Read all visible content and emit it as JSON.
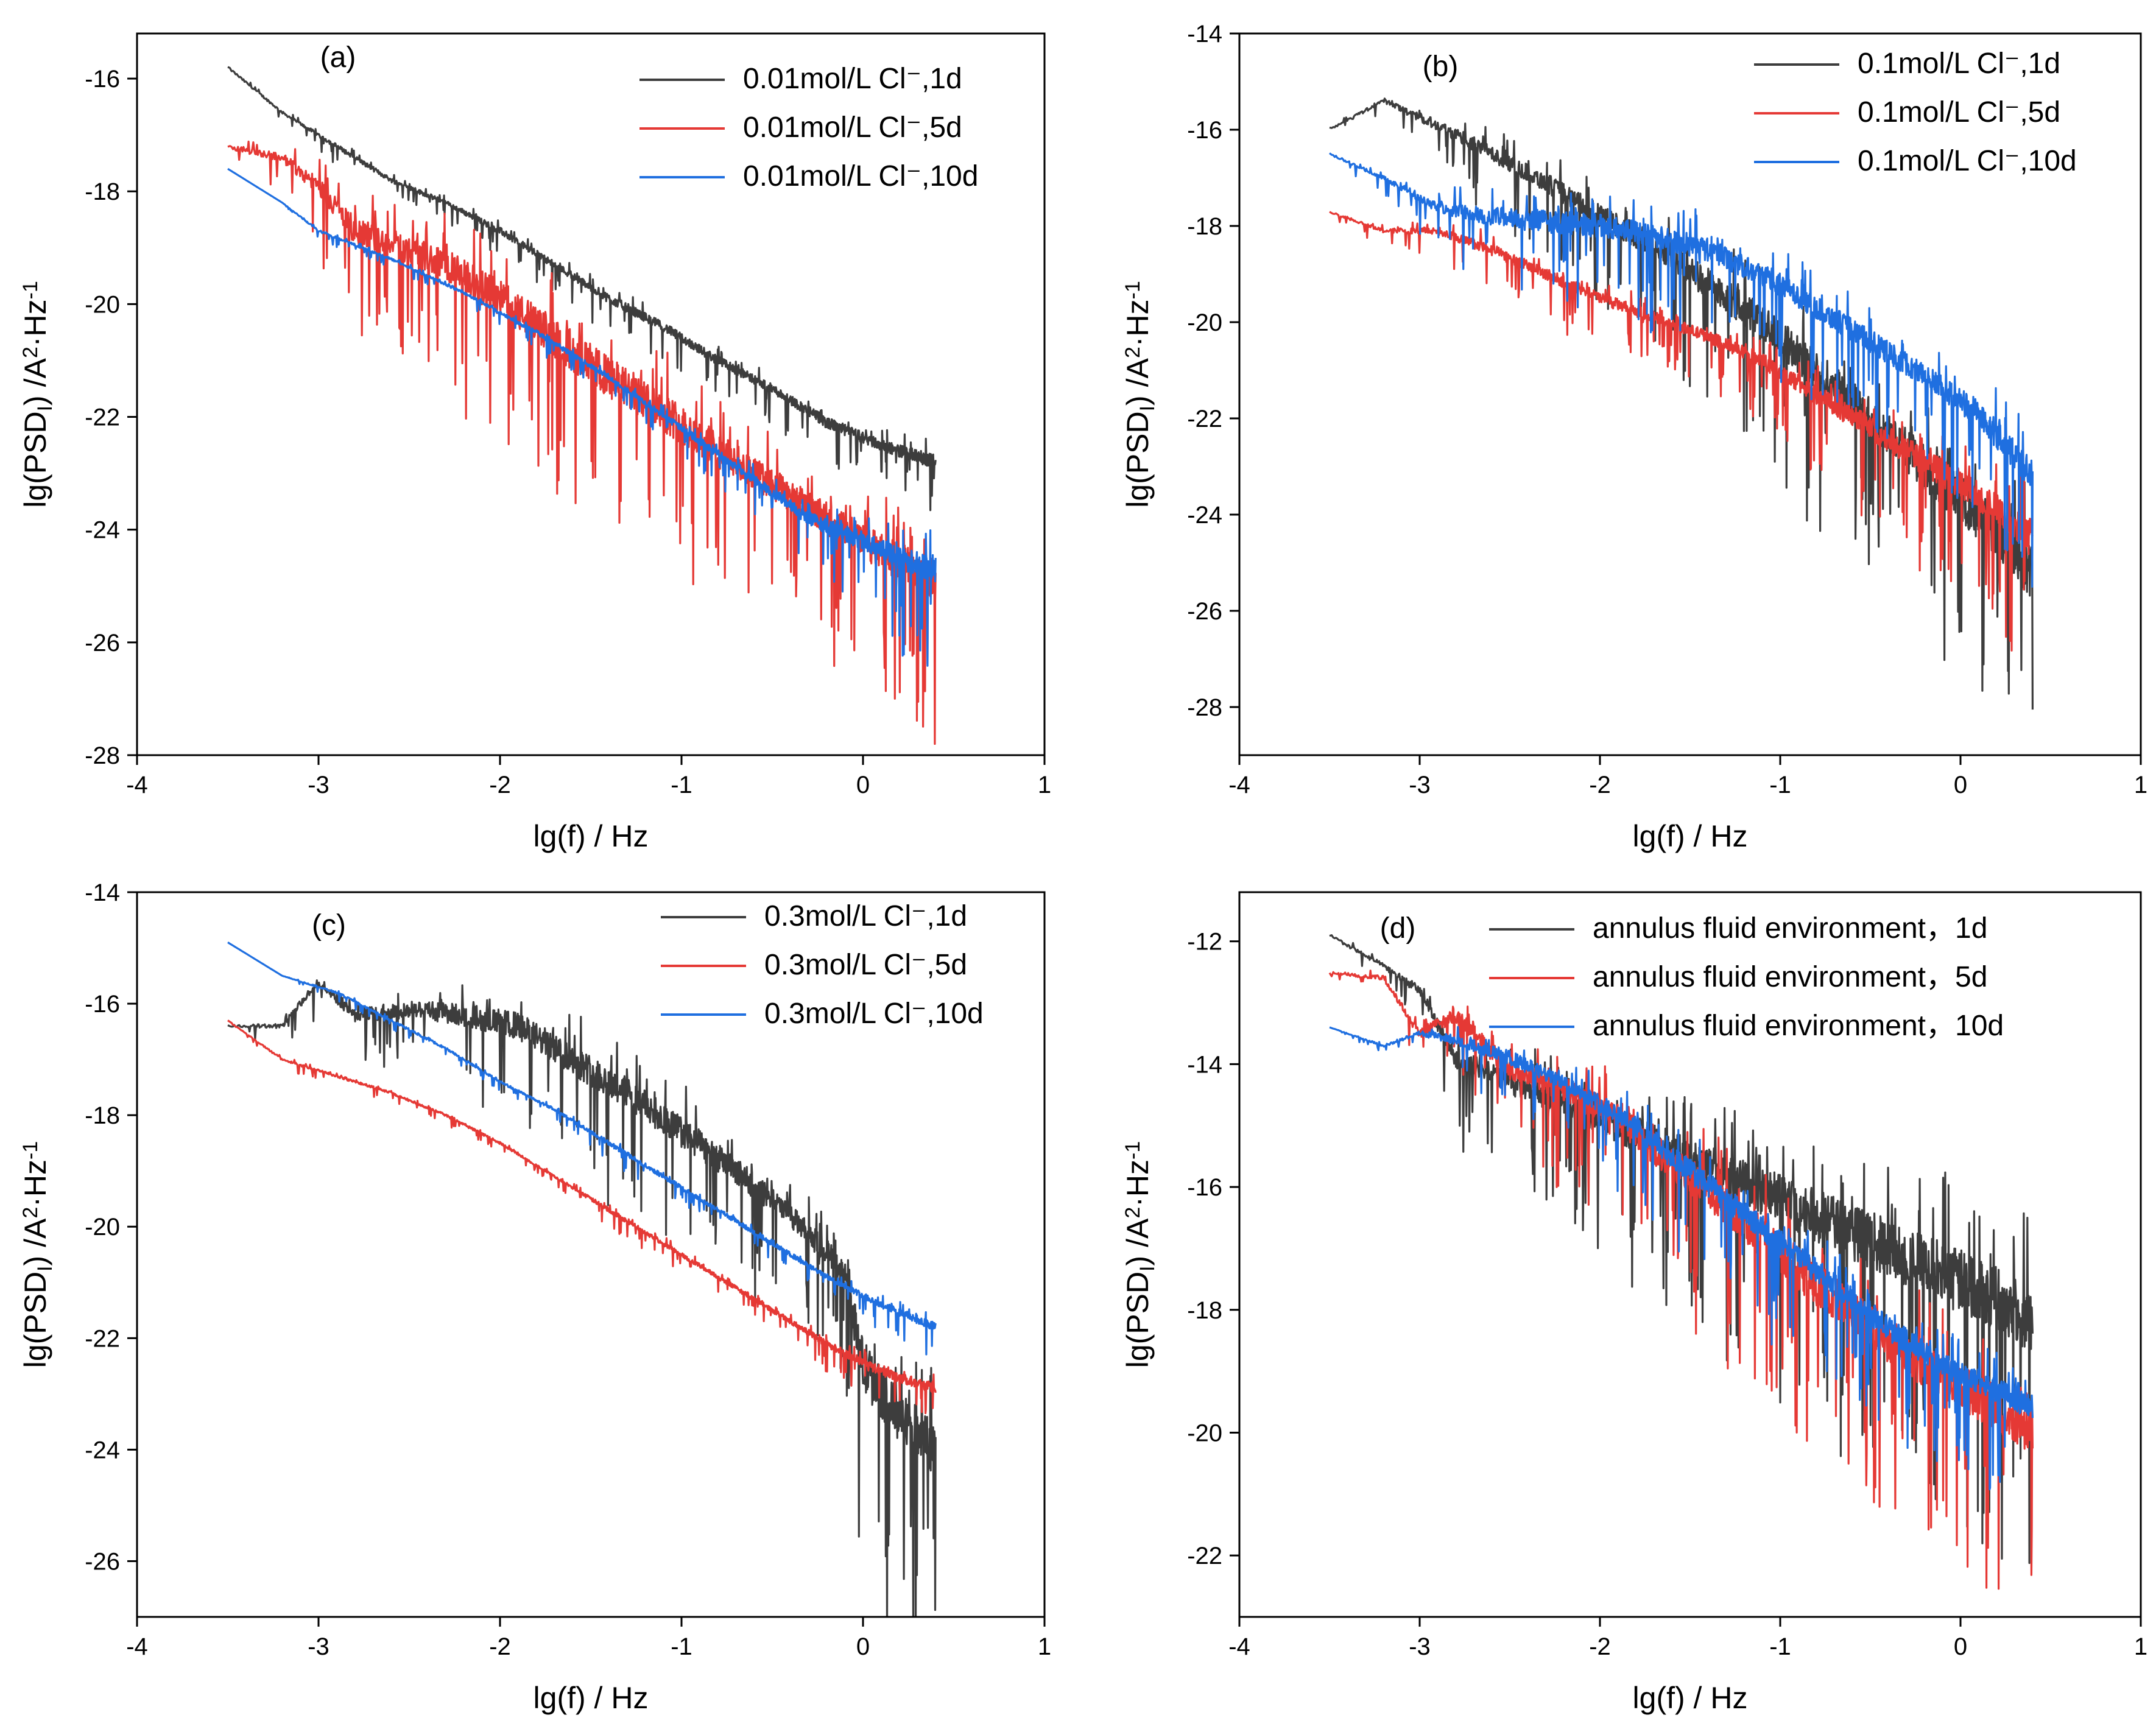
{
  "chart_data": [
    {
      "type": "line",
      "panel_label": "(a)",
      "xlabel": "lg(f) / Hz",
      "ylabel": "lg(PSD",
      "ylabel_sub": "I",
      "ylabel_tail": ") /A",
      "ylabel_sup": "2",
      "ylabel_tail2": "·Hz",
      "ylabel_sup2": "-1",
      "xlim": [
        -4,
        1
      ],
      "ylim": [
        -28,
        -15.2
      ],
      "xticks": [
        -4,
        -3,
        -2,
        -1,
        0,
        1
      ],
      "yticks": [
        -28,
        -26,
        -24,
        -22,
        -20,
        -18,
        -16
      ],
      "legend_position": "top-right",
      "series": [
        {
          "name": "0.01mol/L Cl⁻,1d",
          "color": "#3d3d3d",
          "x": [
            -3.5,
            -3.2,
            -2.9,
            -2.6,
            -2.3,
            -2.0,
            -1.7,
            -1.4,
            -1.1,
            -0.8,
            -0.5,
            -0.2,
            0.1,
            0.4
          ],
          "y": [
            -15.8,
            -16.6,
            -17.2,
            -17.8,
            -18.2,
            -18.7,
            -19.3,
            -19.9,
            -20.4,
            -21.0,
            -21.5,
            -22.1,
            -22.5,
            -22.8
          ],
          "noise": [
            0.05,
            0.05,
            0.1,
            0.1,
            0.1,
            0.15,
            0.15,
            0.2,
            0.2,
            0.2,
            0.2,
            0.25,
            0.25,
            0.3
          ]
        },
        {
          "name": "0.01mol/L Cl⁻,5d",
          "color": "#e53935",
          "x": [
            -3.5,
            -3.2,
            -3.0,
            -2.8,
            -2.6,
            -2.3,
            -2.0,
            -1.7,
            -1.4,
            -1.1,
            -0.8,
            -0.5,
            -0.2,
            0.1,
            0.4
          ],
          "y": [
            -17.2,
            -17.4,
            -17.9,
            -18.7,
            -18.9,
            -19.3,
            -19.9,
            -20.6,
            -21.3,
            -21.9,
            -22.6,
            -23.2,
            -23.8,
            -24.4,
            -24.9
          ],
          "noise": [
            0.1,
            0.2,
            0.4,
            0.6,
            0.6,
            0.7,
            0.8,
            0.9,
            0.9,
            0.9,
            0.8,
            0.7,
            0.7,
            0.8,
            0.9
          ]
        },
        {
          "name": "0.01mol/L Cl⁻,10d",
          "color": "#1f6fe0",
          "x": [
            -3.5,
            -3.2,
            -3.0,
            -2.6,
            -2.2,
            -1.8,
            -1.4,
            -1.0,
            -0.6,
            -0.3,
            0.0,
            0.2,
            0.4
          ],
          "y": [
            -17.6,
            -18.2,
            -18.7,
            -19.2,
            -19.8,
            -20.5,
            -21.3,
            -22.2,
            -23.1,
            -23.8,
            -24.2,
            -24.5,
            -24.7
          ],
          "noise": [
            0.0,
            0.0,
            0.05,
            0.05,
            0.05,
            0.1,
            0.1,
            0.15,
            0.2,
            0.3,
            0.4,
            0.5,
            0.6
          ]
        }
      ]
    },
    {
      "type": "line",
      "panel_label": "(b)",
      "xlabel": "lg(f) / Hz",
      "ylabel": "lg(PSD",
      "ylabel_sub": "I",
      "ylabel_tail": ") /A",
      "ylabel_sup": "2",
      "ylabel_tail2": "·Hz",
      "ylabel_sup2": "-1",
      "xlim": [
        -4,
        1
      ],
      "ylim": [
        -29,
        -14
      ],
      "xticks": [
        -4,
        -3,
        -2,
        -1,
        0,
        1
      ],
      "yticks": [
        -28,
        -26,
        -24,
        -22,
        -20,
        -18,
        -16,
        -14
      ],
      "legend_position": "top-right",
      "series": [
        {
          "name": "0.1mol/L Cl⁻,1d",
          "color": "#3d3d3d",
          "x": [
            -3.5,
            -3.2,
            -2.9,
            -2.6,
            -2.3,
            -2.0,
            -1.7,
            -1.4,
            -1.1,
            -0.8,
            -0.5,
            -0.2,
            0.1,
            0.4
          ],
          "y": [
            -16.0,
            -15.4,
            -15.9,
            -16.5,
            -17.1,
            -17.8,
            -18.4,
            -19.2,
            -20.0,
            -21.0,
            -22.0,
            -23.0,
            -24.0,
            -25.2
          ],
          "noise": [
            0.05,
            0.1,
            0.3,
            0.4,
            0.5,
            0.6,
            0.7,
            0.8,
            0.9,
            1.0,
            1.1,
            1.2,
            1.3,
            1.4
          ]
        },
        {
          "name": "0.1mol/L Cl⁻,5d",
          "color": "#e53935",
          "x": [
            -3.5,
            -3.2,
            -2.9,
            -2.6,
            -2.3,
            -2.0,
            -1.7,
            -1.4,
            -1.1,
            -0.8,
            -0.5,
            -0.2,
            0.1,
            0.4
          ],
          "y": [
            -17.7,
            -18.1,
            -18.1,
            -18.5,
            -19.0,
            -19.5,
            -19.9,
            -20.3,
            -20.8,
            -21.5,
            -22.2,
            -22.9,
            -23.6,
            -24.5
          ],
          "noise": [
            0.05,
            0.1,
            0.2,
            0.3,
            0.3,
            0.3,
            0.3,
            0.3,
            0.4,
            0.5,
            0.6,
            0.7,
            0.8,
            1.0
          ]
        },
        {
          "name": "0.1mol/L Cl⁻,10d",
          "color": "#1f6fe0",
          "x": [
            -3.5,
            -3.2,
            -2.9,
            -2.6,
            -2.3,
            -2.0,
            -1.7,
            -1.4,
            -1.1,
            -0.8,
            -0.5,
            -0.2,
            0.1,
            0.4
          ],
          "y": [
            -16.5,
            -17.0,
            -17.6,
            -17.8,
            -17.9,
            -18.0,
            -18.2,
            -18.5,
            -19.0,
            -19.7,
            -20.4,
            -21.1,
            -21.9,
            -23.2
          ],
          "noise": [
            0.05,
            0.1,
            0.3,
            0.5,
            0.6,
            0.6,
            0.6,
            0.6,
            0.6,
            0.6,
            0.6,
            0.6,
            0.7,
            0.8
          ]
        }
      ]
    },
    {
      "type": "line",
      "panel_label": "(c)",
      "xlabel": "lg(f) / Hz",
      "ylabel": "lg(PSD",
      "ylabel_sub": "I",
      "ylabel_tail": ") /A",
      "ylabel_sup": "2",
      "ylabel_tail2": "·Hz",
      "ylabel_sup2": "-1",
      "xlim": [
        -4,
        1
      ],
      "ylim": [
        -27,
        -14
      ],
      "xticks": [
        -4,
        -3,
        -2,
        -1,
        0,
        1
      ],
      "yticks": [
        -26,
        -24,
        -22,
        -20,
        -18,
        -16,
        -14
      ],
      "legend_position": "top-right",
      "series": [
        {
          "name": "0.3mol/L Cl⁻,1d",
          "color": "#3d3d3d",
          "x": [
            -3.5,
            -3.2,
            -3.0,
            -2.8,
            -2.5,
            -2.2,
            -1.9,
            -1.6,
            -1.3,
            -1.0,
            -0.7,
            -0.4,
            -0.1,
            0.0,
            0.2,
            0.4
          ],
          "y": [
            -16.4,
            -16.4,
            -15.6,
            -16.2,
            -16.1,
            -16.2,
            -16.4,
            -17.0,
            -17.6,
            -18.3,
            -19.0,
            -19.8,
            -20.8,
            -22.5,
            -23.4,
            -24.0
          ],
          "noise": [
            0.05,
            0.1,
            0.2,
            0.3,
            0.4,
            0.5,
            0.6,
            0.7,
            0.7,
            0.7,
            0.6,
            0.5,
            0.6,
            1.2,
            1.2,
            1.2
          ]
        },
        {
          "name": "0.3mol/L Cl⁻,5d",
          "color": "#e53935",
          "x": [
            -3.5,
            -3.2,
            -2.9,
            -2.6,
            -2.3,
            -2.0,
            -1.7,
            -1.4,
            -1.1,
            -0.8,
            -0.5,
            -0.2,
            0.1,
            0.4
          ],
          "y": [
            -16.3,
            -17.0,
            -17.3,
            -17.6,
            -18.0,
            -18.5,
            -19.1,
            -19.7,
            -20.3,
            -20.9,
            -21.5,
            -22.1,
            -22.6,
            -22.9
          ],
          "noise": [
            0.0,
            0.05,
            0.05,
            0.05,
            0.05,
            0.05,
            0.05,
            0.1,
            0.1,
            0.1,
            0.1,
            0.15,
            0.2,
            0.25
          ]
        },
        {
          "name": "0.3mol/L Cl⁻,10d",
          "color": "#1f6fe0",
          "x": [
            -3.5,
            -3.2,
            -2.9,
            -2.6,
            -2.3,
            -2.0,
            -1.7,
            -1.4,
            -1.1,
            -0.8,
            -0.5,
            -0.2,
            0.1,
            0.4
          ],
          "y": [
            -14.9,
            -15.5,
            -15.8,
            -16.3,
            -16.8,
            -17.4,
            -17.9,
            -18.5,
            -19.1,
            -19.7,
            -20.3,
            -20.9,
            -21.4,
            -21.8
          ],
          "noise": [
            0.0,
            0.0,
            0.05,
            0.05,
            0.05,
            0.05,
            0.05,
            0.1,
            0.1,
            0.1,
            0.1,
            0.1,
            0.15,
            0.2
          ]
        }
      ]
    },
    {
      "type": "line",
      "panel_label": "(d)",
      "xlabel": "lg(f) / Hz",
      "ylabel": "lg(PSD",
      "ylabel_sub": "I",
      "ylabel_tail": ") /A",
      "ylabel_sup": "2",
      "ylabel_tail2": "·Hz",
      "ylabel_sup2": "-1",
      "xlim": [
        -4,
        1
      ],
      "ylim": [
        -23,
        -11.2
      ],
      "xticks": [
        -4,
        -3,
        -2,
        -1,
        0,
        1
      ],
      "yticks": [
        -22,
        -20,
        -18,
        -16,
        -14,
        -12
      ],
      "legend_position": "top-right",
      "series": [
        {
          "name": "annulus fluid environment，1d",
          "color": "#3d3d3d",
          "x": [
            -3.5,
            -3.2,
            -3.0,
            -2.8,
            -2.5,
            -2.2,
            -1.9,
            -1.6,
            -1.3,
            -1.0,
            -0.7,
            -0.4,
            -0.1,
            0.2,
            0.4
          ],
          "y": [
            -11.9,
            -12.4,
            -12.8,
            -13.9,
            -14.3,
            -14.6,
            -15.0,
            -15.4,
            -15.8,
            -16.2,
            -16.6,
            -17.0,
            -17.4,
            -17.8,
            -18.2
          ],
          "noise": [
            0.05,
            0.1,
            0.2,
            0.4,
            0.5,
            0.6,
            0.7,
            0.8,
            0.9,
            1.0,
            1.1,
            1.2,
            1.3,
            1.3,
            1.3
          ]
        },
        {
          "name": "annulus fluid environment，5d",
          "color": "#e53935",
          "x": [
            -3.5,
            -3.2,
            -3.0,
            -2.8,
            -2.5,
            -2.2,
            -1.9,
            -1.6,
            -1.3,
            -1.0,
            -0.7,
            -0.4,
            -0.1,
            0.2,
            0.4
          ],
          "y": [
            -12.5,
            -12.6,
            -13.5,
            -13.2,
            -14.1,
            -14.4,
            -14.9,
            -15.6,
            -16.3,
            -17.1,
            -17.8,
            -18.5,
            -19.1,
            -19.6,
            -20.0
          ],
          "noise": [
            0.05,
            0.1,
            0.2,
            0.3,
            0.4,
            0.5,
            0.6,
            0.7,
            0.8,
            0.9,
            0.9,
            0.9,
            0.9,
            0.9,
            0.9
          ]
        },
        {
          "name": "annulus fluid environment，10d",
          "color": "#1f6fe0",
          "x": [
            -3.5,
            -3.2,
            -3.0,
            -2.8,
            -2.5,
            -2.2,
            -1.9,
            -1.6,
            -1.3,
            -1.0,
            -0.7,
            -0.4,
            -0.1,
            0.2,
            0.4
          ],
          "y": [
            -13.4,
            -13.7,
            -13.5,
            -13.6,
            -13.9,
            -14.3,
            -14.8,
            -15.5,
            -16.2,
            -16.9,
            -17.6,
            -18.3,
            -18.9,
            -19.3,
            -19.6
          ],
          "noise": [
            0.0,
            0.05,
            0.1,
            0.2,
            0.3,
            0.3,
            0.4,
            0.5,
            0.5,
            0.5,
            0.5,
            0.5,
            0.5,
            0.5,
            0.5
          ]
        }
      ]
    }
  ]
}
